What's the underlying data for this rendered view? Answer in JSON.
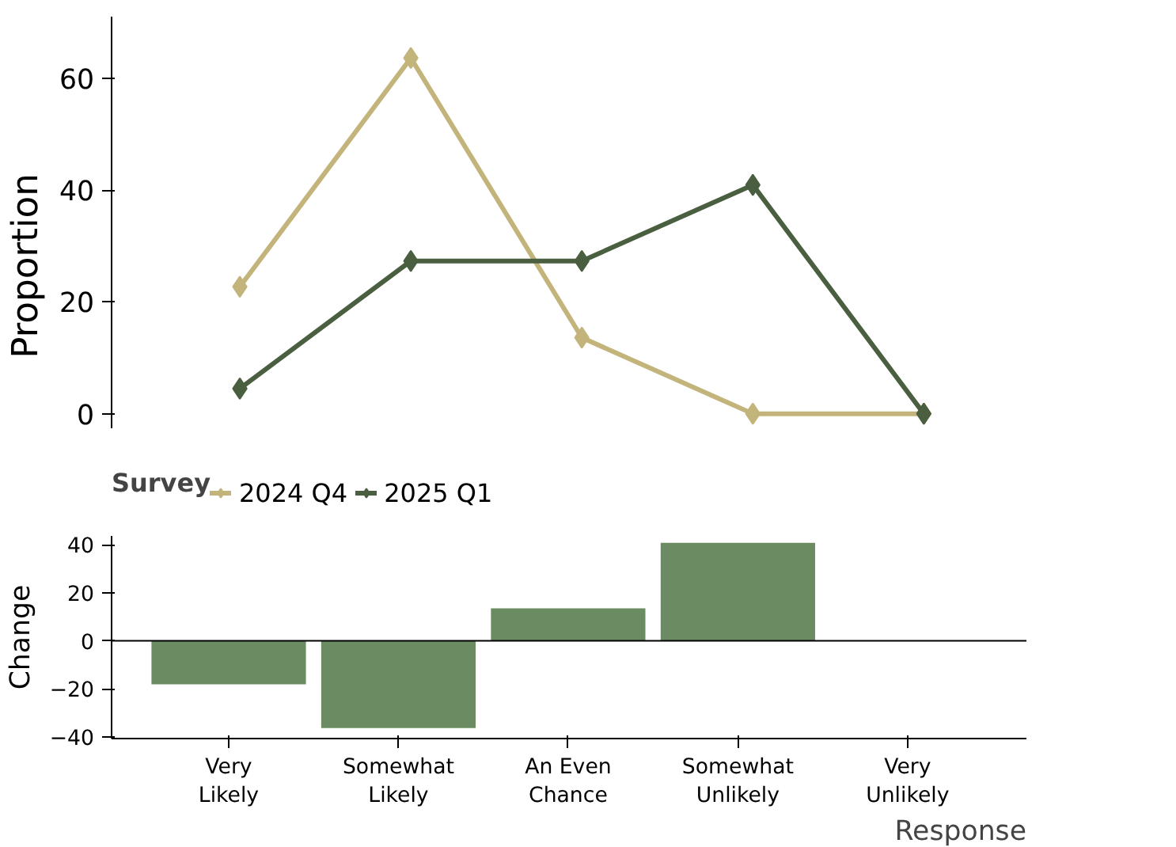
{
  "chart_data": [
    {
      "type": "line",
      "ylabel": "Proportion",
      "legend_title": "Survey",
      "legend": "bottom",
      "marker": "diamond",
      "line_style": "solid",
      "tick_labels": "y",
      "categories": [
        null,
        null,
        null,
        null,
        null
      ],
      "ylim": [
        -2.6,
        71
      ],
      "yticks": [
        0,
        20,
        40,
        60
      ],
      "grid": false,
      "series": [
        {
          "name": "2024 Q4",
          "color": "#c2b47a",
          "values": [
            22.7,
            63.6,
            13.6,
            0,
            0
          ]
        },
        {
          "name": "2025 Q1",
          "color": "#4a5e40",
          "values": [
            4.5,
            27.3,
            27.3,
            40.9,
            0
          ]
        }
      ]
    },
    {
      "type": "bar",
      "xlabel": "Response",
      "ylabel": "Change",
      "color": "#6b8c62",
      "categories": [
        "Very Likely",
        "Somewhat Likely",
        "An Even Chance",
        "Somewhat Unlikely",
        "Very Unlikely"
      ],
      "values": [
        -18.2,
        -36.4,
        13.6,
        40.9,
        0
      ],
      "ylim": [
        -40.8,
        43.8
      ],
      "yticks": [
        -40,
        -20,
        0,
        20,
        40
      ],
      "grid": false,
      "ref_lines": [
        {
          "axis": "y",
          "value": 0
        }
      ]
    }
  ]
}
